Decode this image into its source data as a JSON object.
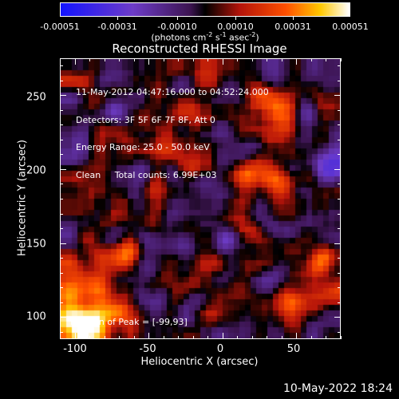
{
  "colorbar": {
    "ticks": [
      "-0.00051",
      "-0.00031",
      "-0.00010",
      "0.00010",
      "0.00031",
      "0.00051"
    ],
    "unit_main": "(photons cm",
    "unit_exp1": "-2",
    "unit_mid1": " s",
    "unit_exp2": "-1",
    "unit_mid2": " asec",
    "unit_exp3": "-2",
    "unit_end": ")"
  },
  "plot": {
    "title": "Reconstructed RHESSI Image",
    "xlabel": "Heliocentric X (arcsec)",
    "ylabel": "Heliocentric Y (arcsec)",
    "x_ticks": [
      "-100",
      "-50",
      "0",
      "50"
    ],
    "y_ticks": [
      "100",
      "150",
      "200",
      "250"
    ],
    "x_range": [
      -110,
      80
    ],
    "y_range": [
      85,
      275
    ]
  },
  "info": {
    "time": "11-May-2012 04:47:16.000 to 04:52:24.000",
    "detectors": "Detectors: 3F 5F 6F 7F 8F, Att 0",
    "energy": "Energy Range: 25.0 - 50.0 keV",
    "method": "Clean     Total counts: 6.99E+03",
    "peak": "Position of Peak = [-99,93]"
  },
  "footer": {
    "timestamp": "10-May-2022 18:24"
  },
  "colors": {
    "background": "#000000",
    "foreground": "#ffffff"
  }
}
